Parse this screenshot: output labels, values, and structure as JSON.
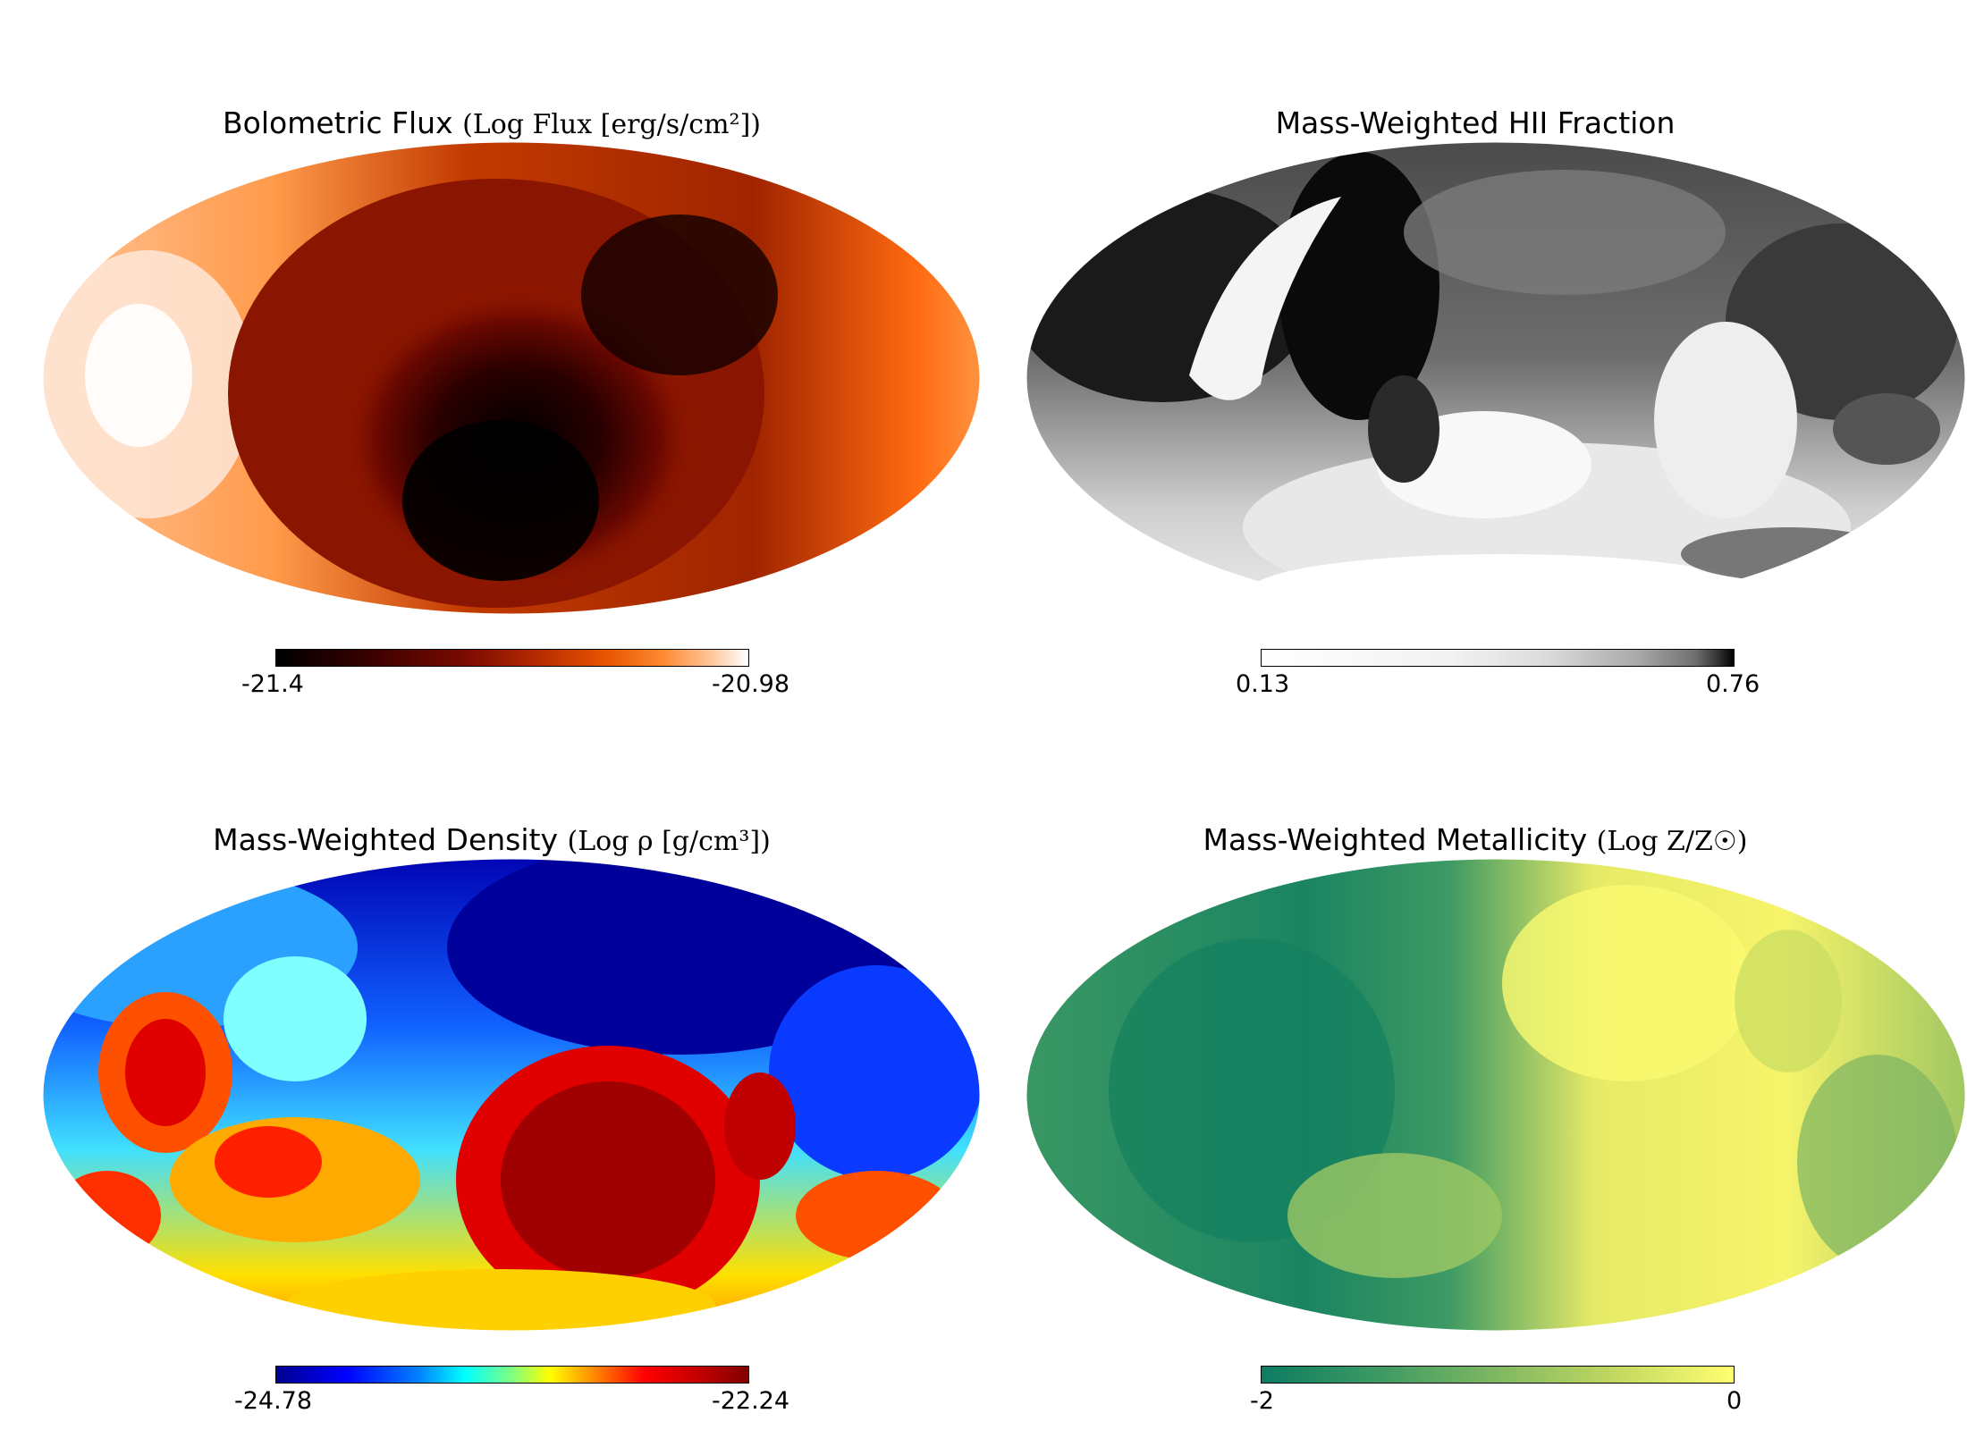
{
  "colors": {
    "flux": [
      "#000000",
      "#3a0000",
      "#7a0b00",
      "#b52a00",
      "#e85500",
      "#ff8a33",
      "#ffc59a",
      "#ffffff"
    ],
    "hii": [
      "#ffffff",
      "#dcdcdc",
      "#a8a8a8",
      "#6e6e6e",
      "#2e2e2e",
      "#000000"
    ],
    "density": [
      "#00008f",
      "#0000ff",
      "#00bfff",
      "#40ffbf",
      "#ffff00",
      "#ff6600",
      "#ee0000",
      "#800000"
    ],
    "metal": [
      "#0c7c62",
      "#3d9a63",
      "#80b862",
      "#c2d860",
      "#f3f36a",
      "#ffff70"
    ]
  },
  "panels": [
    {
      "title": "Bolometric Flux",
      "unit": "(Log Flux [erg/s/cm²])",
      "cbar_min": "-21.4",
      "cbar_max": "-20.98",
      "colormap": "flux",
      "colormap_name": "gist_heat"
    },
    {
      "title": "Mass-Weighted HII Fraction",
      "unit": "",
      "cbar_min": "0.13",
      "cbar_max": "0.76",
      "colormap": "hii",
      "colormap_name": "gray_r"
    },
    {
      "title": "Mass-Weighted Density",
      "unit": "(Log ρ [g/cm³])",
      "cbar_min": "-24.78",
      "cbar_max": "-22.24",
      "colormap": "density",
      "colormap_name": "jet"
    },
    {
      "title": "Mass-Weighted Metallicity",
      "unit": "(Log Z/Z☉)",
      "cbar_min": "-2",
      "cbar_max": "0",
      "colormap": "metal",
      "colormap_name": "summer"
    }
  ],
  "chart_data": [
    {
      "type": "heatmap",
      "projection": "mollweide",
      "title": "Bolometric Flux (Log Flux [erg/s/cm²])",
      "colorbar_range": [
        -21.4,
        -20.98
      ],
      "colormap": "gist_heat"
    },
    {
      "type": "heatmap",
      "projection": "mollweide",
      "title": "Mass-Weighted HII Fraction",
      "colorbar_range": [
        0.13,
        0.76
      ],
      "colormap": "gray_r"
    },
    {
      "type": "heatmap",
      "projection": "mollweide",
      "title": "Mass-Weighted Density (Log ρ [g/cm³])",
      "colorbar_range": [
        -24.78,
        -22.24
      ],
      "colormap": "jet"
    },
    {
      "type": "heatmap",
      "projection": "mollweide",
      "title": "Mass-Weighted Metallicity (Log Z/Z☉)",
      "colorbar_range": [
        -2,
        0
      ],
      "colormap": "summer"
    }
  ]
}
